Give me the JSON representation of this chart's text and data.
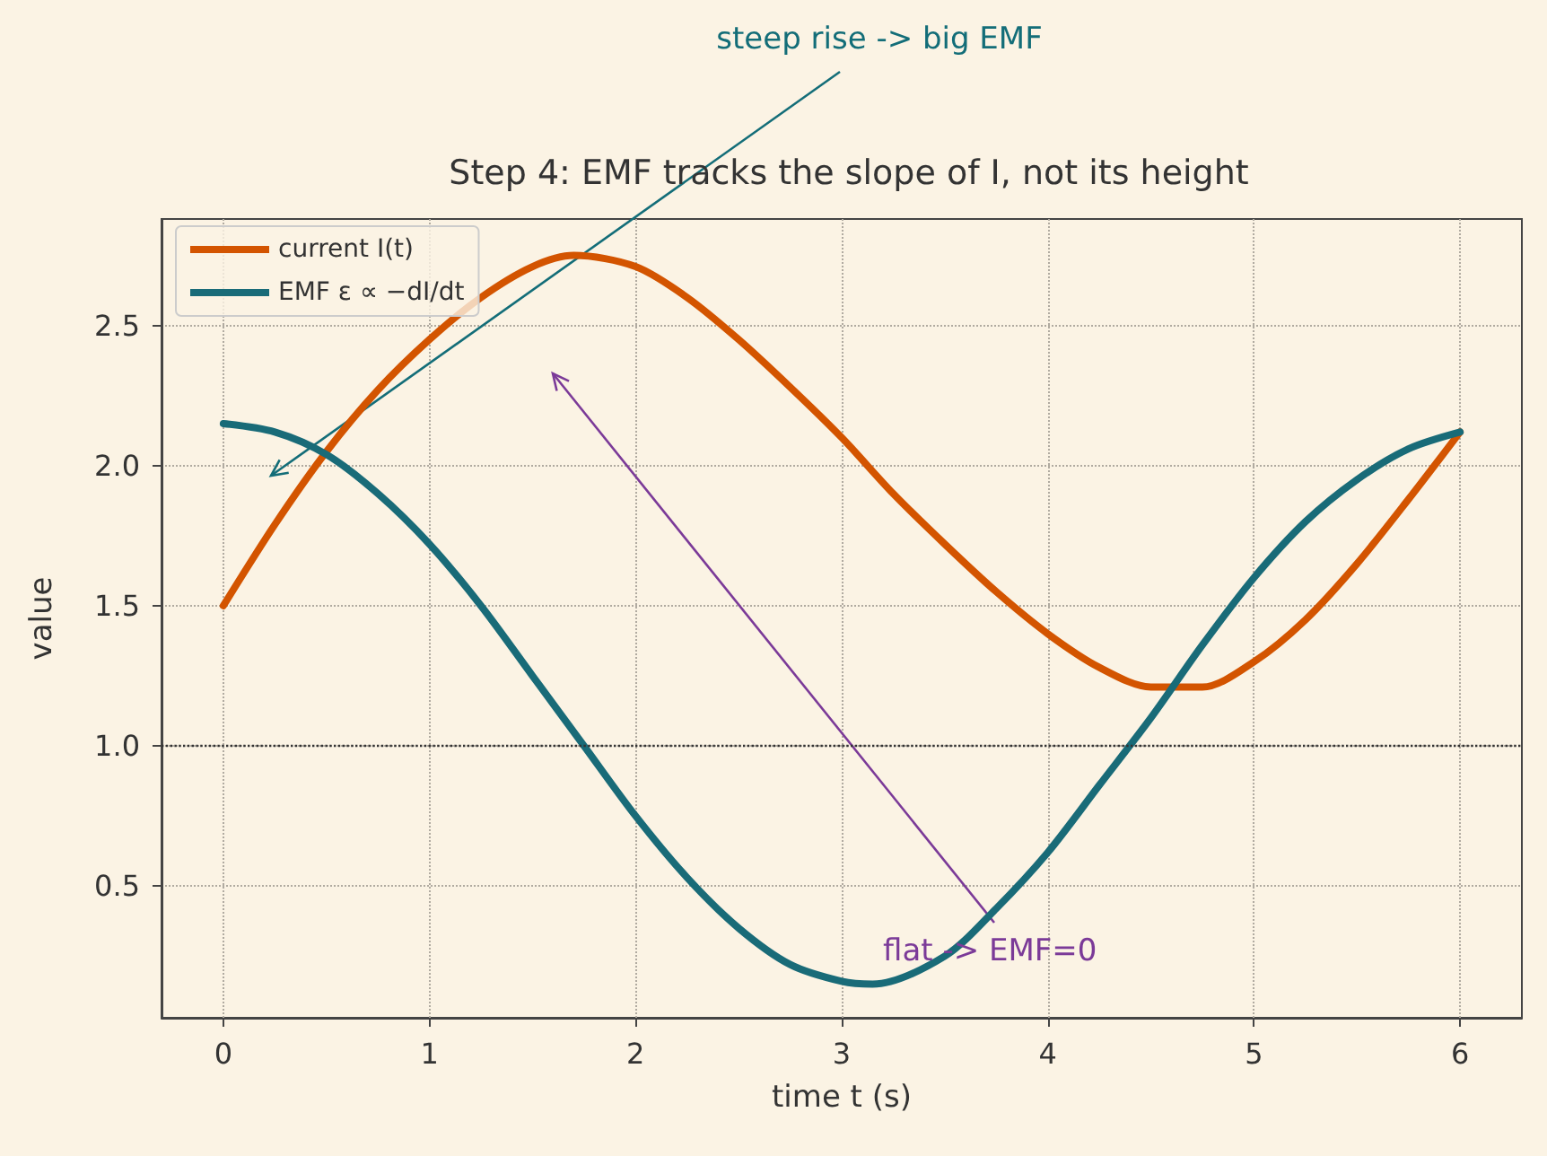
{
  "chart_data": {
    "type": "line",
    "title": "Step 4: EMF tracks the slope of I, not its height",
    "xlabel": "time t (s)",
    "ylabel": "value",
    "x": [
      0,
      0.25,
      0.5,
      0.75,
      1,
      1.25,
      1.5,
      1.7,
      2,
      2.25,
      2.5,
      2.75,
      3,
      3.25,
      3.5,
      3.75,
      4,
      4.25,
      4.5,
      4.75,
      5,
      5.25,
      5.5,
      5.75,
      6
    ],
    "series": [
      {
        "name": "current I(t)",
        "color": "#d35400",
        "values": [
          1.5,
          1.79,
          2.05,
          2.27,
          2.45,
          2.6,
          2.71,
          2.75,
          2.71,
          2.6,
          2.45,
          2.28,
          2.1,
          1.9,
          1.72,
          1.55,
          1.4,
          1.28,
          1.21,
          1.21,
          1.3,
          1.45,
          1.65,
          1.88,
          2.12
        ]
      },
      {
        "name": "EMF ε ∝ −dI/dt",
        "color": "#196b78",
        "x": [
          0,
          0.25,
          0.5,
          0.75,
          1,
          1.25,
          1.5,
          1.75,
          2,
          2.25,
          2.5,
          2.75,
          3,
          3.15,
          3.5,
          3.75,
          4,
          4.25,
          4.5,
          4.75,
          5,
          5.25,
          5.5,
          5.75,
          6
        ],
        "values": [
          2.15,
          2.12,
          2.04,
          1.9,
          1.72,
          1.5,
          1.25,
          1.0,
          0.75,
          0.53,
          0.35,
          0.22,
          0.16,
          0.15,
          0.25,
          0.42,
          0.62,
          0.86,
          1.1,
          1.36,
          1.6,
          1.8,
          1.95,
          2.06,
          2.12
        ]
      }
    ],
    "xlim": [
      -0.3,
      6.3
    ],
    "xticks": [
      0,
      1,
      2,
      3,
      4,
      5,
      6
    ],
    "ylim": [
      0.03,
      2.88
    ],
    "yticks": [
      0.5,
      {
        "value": 1,
        "label": "1.0"
      },
      1.5,
      {
        "value": 2,
        "label": "2.0"
      },
      2.5
    ],
    "ref_lines": [
      {
        "axis": "y",
        "value": 1.0,
        "color": "#333333",
        "line_style": "dotted"
      }
    ],
    "annotations": [
      "steep rise -> big EMF",
      "flat -> EMF=0"
    ],
    "grid": true,
    "legend": "top left",
    "line_style": "solid",
    "marker": "none"
  }
}
